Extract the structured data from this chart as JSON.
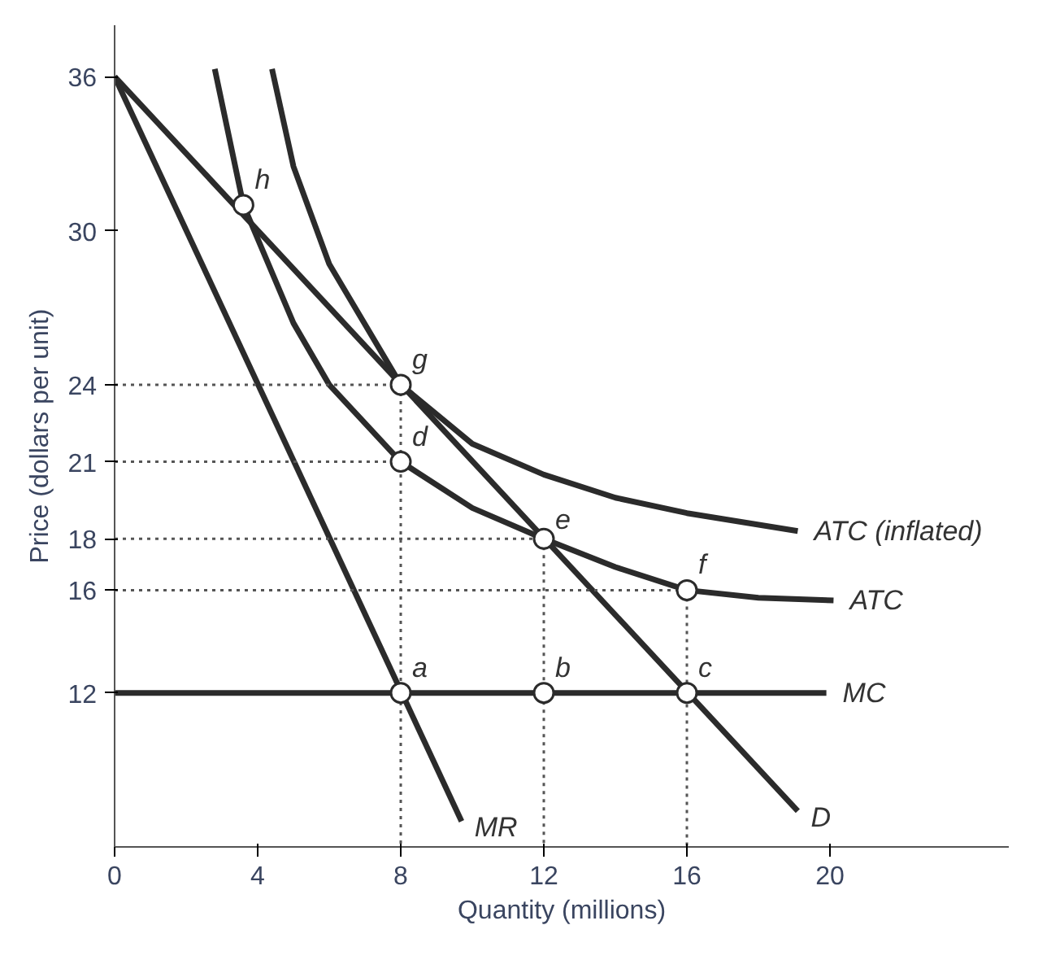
{
  "chart_data": {
    "type": "line",
    "xlabel": "Quantity (millions)",
    "ylabel": "Price (dollars per unit)",
    "xlim": [
      0,
      25
    ],
    "ylim": [
      6,
      38
    ],
    "xticks": [
      0,
      4,
      8,
      12,
      16,
      20
    ],
    "yticks": [
      12,
      16,
      18,
      21,
      24,
      30,
      36
    ],
    "grid": false,
    "legend": false,
    "line_style": "solid",
    "marker": "none",
    "series": [
      {
        "name": "D",
        "color": "#2b2b2b",
        "x": [
          0,
          19.1
        ],
        "values": [
          36,
          7.4
        ]
      },
      {
        "name": "MR",
        "color": "#2b2b2b",
        "x": [
          0,
          9.7
        ],
        "values": [
          36,
          7
        ]
      },
      {
        "name": "MC",
        "color": "#2b2b2b",
        "x": [
          0,
          19.9
        ],
        "values": [
          12,
          12
        ]
      },
      {
        "name": "ATC",
        "color": "#2b2b2b",
        "x": [
          2.8,
          3.6,
          5,
          6,
          8,
          10,
          12,
          14,
          16,
          18,
          20.1
        ],
        "values": [
          36.3,
          31,
          26.4,
          24,
          21,
          19.2,
          18,
          16.9,
          16,
          15.7,
          15.6
        ]
      },
      {
        "name": "ATC (inflated)",
        "color": "#2b2b2b",
        "x": [
          4.4,
          5,
          6,
          8,
          10,
          12,
          14,
          16,
          19.1
        ],
        "values": [
          36.3,
          32.5,
          28.7,
          24,
          21.7,
          20.5,
          19.6,
          19,
          18.3
        ]
      },
      {
        "color": "#555555",
        "line_style": "dotted",
        "x": [
          0,
          8
        ],
        "values": [
          24,
          24
        ]
      },
      {
        "color": "#555555",
        "line_style": "dotted",
        "x": [
          0,
          8
        ],
        "values": [
          21,
          21
        ]
      },
      {
        "color": "#555555",
        "line_style": "dotted",
        "x": [
          0,
          12
        ],
        "values": [
          18,
          18
        ]
      },
      {
        "color": "#555555",
        "line_style": "dotted",
        "x": [
          0,
          16
        ],
        "values": [
          16,
          16
        ]
      },
      {
        "color": "#555555",
        "line_style": "dotted",
        "x": [
          8,
          8
        ],
        "values": [
          24,
          6
        ]
      },
      {
        "color": "#555555",
        "line_style": "dotted",
        "x": [
          12,
          12
        ],
        "values": [
          18,
          6
        ]
      },
      {
        "color": "#555555",
        "line_style": "dotted",
        "x": [
          16,
          16
        ],
        "values": [
          16,
          6
        ]
      },
      {
        "type": "scatter",
        "marker": "circle",
        "color": "#2b2b2b",
        "x": [
          3.6,
          8,
          8,
          12,
          16,
          8,
          12,
          16
        ],
        "values": [
          31,
          24,
          21,
          18,
          16,
          12,
          12,
          12
        ]
      }
    ],
    "annotations": [
      {
        "text": "h",
        "x": 3.6,
        "y": 31
      },
      {
        "text": "g",
        "x": 8,
        "y": 24
      },
      {
        "text": "d",
        "x": 8,
        "y": 21
      },
      {
        "text": "e",
        "x": 12,
        "y": 18
      },
      {
        "text": "f",
        "x": 16,
        "y": 16
      },
      {
        "text": "a",
        "x": 8,
        "y": 12
      },
      {
        "text": "b",
        "x": 12,
        "y": 12
      },
      {
        "text": "c",
        "x": 16,
        "y": 12
      }
    ]
  }
}
